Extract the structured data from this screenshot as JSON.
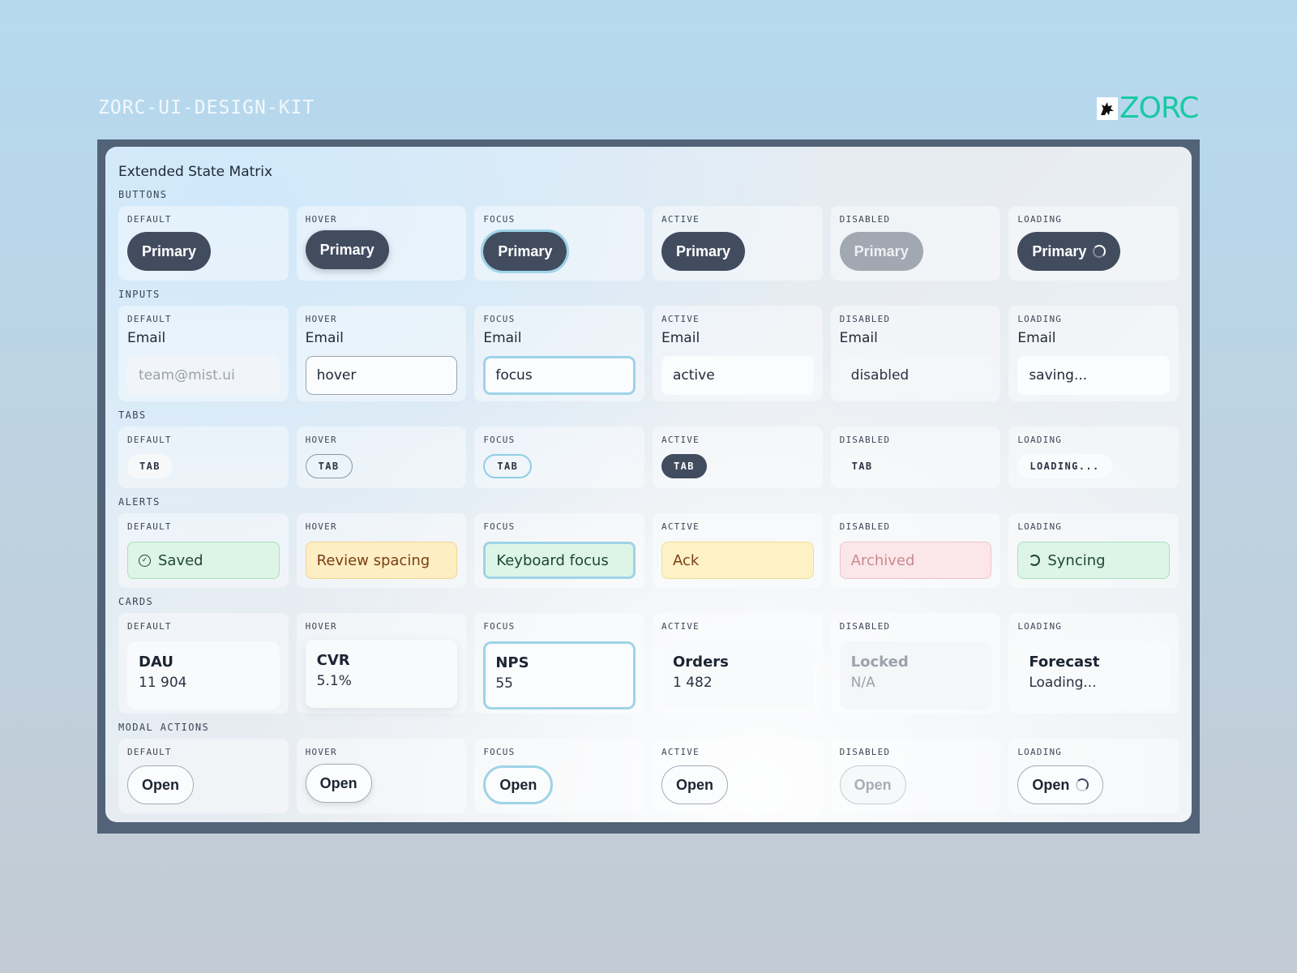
{
  "kit_title": "ZORC-UI-DESIGN-KIT",
  "logo": {
    "text": "ZORC",
    "icon": "wolf-logo-icon",
    "color": "#19c9a4"
  },
  "panel_title": "Extended State Matrix",
  "states": [
    "DEFAULT",
    "HOVER",
    "FOCUS",
    "ACTIVE",
    "DISABLED",
    "LOADING"
  ],
  "sections": {
    "buttons": {
      "label": "BUTTONS",
      "items": [
        "Primary",
        "Primary",
        "Primary",
        "Primary",
        "Primary",
        "Primary"
      ]
    },
    "inputs": {
      "label": "INPUTS",
      "field_label": "Email",
      "placeholder": "team@mist.ui",
      "values": [
        "",
        "hover",
        "focus",
        "active",
        "disabled",
        "saving..."
      ]
    },
    "tabs": {
      "label": "TABS",
      "items": [
        "TAB",
        "TAB",
        "TAB",
        "TAB",
        "TAB",
        "LOADING..."
      ]
    },
    "alerts": {
      "label": "ALERTS",
      "items": [
        "Saved",
        "Review spacing",
        "Keyboard focus",
        "Ack",
        "Archived",
        "Syncing"
      ]
    },
    "cards": {
      "label": "CARDS",
      "items": [
        {
          "title": "DAU",
          "value": "11 904"
        },
        {
          "title": "CVR",
          "value": "5.1%"
        },
        {
          "title": "NPS",
          "value": "55"
        },
        {
          "title": "Orders",
          "value": "1 482"
        },
        {
          "title": "Locked",
          "value": "N/A"
        },
        {
          "title": "Forecast",
          "value": "Loading..."
        }
      ]
    },
    "modal_actions": {
      "label": "MODAL ACTIONS",
      "items": [
        "Open",
        "Open",
        "Open",
        "Open",
        "Open",
        "Open"
      ]
    }
  },
  "colors": {
    "primary": "#414c5f",
    "focus_ring": "#9fd3e8",
    "frame": "#526378",
    "success_bg": "#ddf5e6",
    "warning_bg": "#fdeec4",
    "danger_bg": "#fbe7e9"
  }
}
